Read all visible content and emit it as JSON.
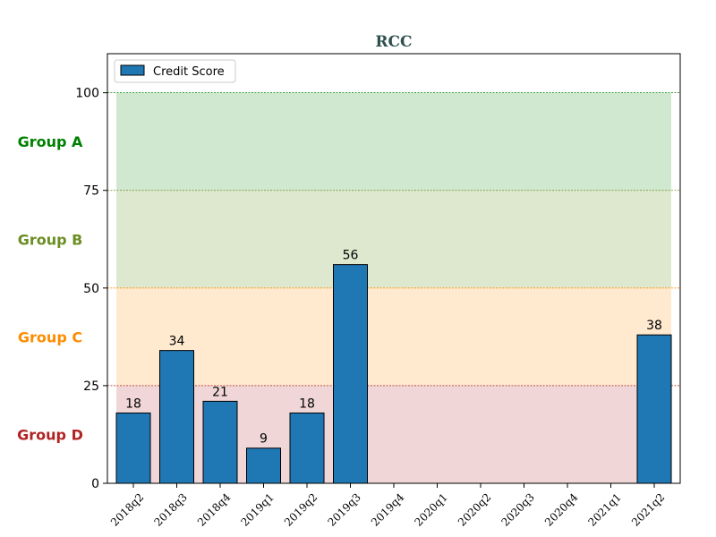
{
  "chart_data": {
    "type": "bar",
    "title": "RCC",
    "categories": [
      "2018q2",
      "2018q3",
      "2018q4",
      "2019q1",
      "2019q2",
      "2019q3",
      "2019q4",
      "2020q1",
      "2020q2",
      "2020q3",
      "2020q4",
      "2021q1",
      "2021q2"
    ],
    "series": [
      {
        "name": "Credit Score",
        "values": [
          18,
          34,
          21,
          9,
          18,
          56,
          null,
          null,
          null,
          null,
          null,
          null,
          38
        ],
        "color": "#1f77b4"
      }
    ],
    "ylim": [
      0,
      110
    ],
    "yticks": [
      0,
      25,
      50,
      75,
      100
    ],
    "legend": "top-left",
    "bands": [
      {
        "label": "Group A",
        "from": 75,
        "to": 100,
        "fill": "#a8d5a8",
        "text_color": "#008000",
        "line_color": "#008000"
      },
      {
        "label": "Group B",
        "from": 50,
        "to": 75,
        "fill": "#c2d6a8",
        "text_color": "#6b8e23",
        "line_color": "#6b8e23"
      },
      {
        "label": "Group C",
        "from": 25,
        "to": 50,
        "fill": "#ffd8a8",
        "text_color": "#ff8c00",
        "line_color": "#ff8c00"
      },
      {
        "label": "Group D",
        "from": 0,
        "to": 25,
        "fill": "#e3b5b5",
        "text_color": "#b22222",
        "line_color": "#b22222"
      }
    ]
  }
}
